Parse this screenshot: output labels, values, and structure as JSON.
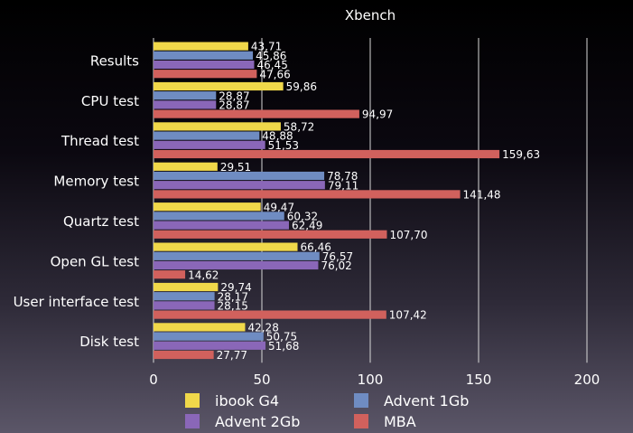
{
  "chart_data": {
    "type": "bar",
    "orientation": "horizontal",
    "title": "Xbench",
    "xlabel": "",
    "ylabel": "",
    "xlim": [
      0,
      200
    ],
    "xticks": [
      0,
      50,
      100,
      150,
      200
    ],
    "grid": true,
    "legend_position": "bottom",
    "categories": [
      "Results",
      "CPU test",
      "Thread test",
      "Memory test",
      "Quartz test",
      "Open GL test",
      "User interface test",
      "Disk test"
    ],
    "series": [
      {
        "name": "ibook G4",
        "color": "#f0d84a",
        "values": [
          43.71,
          59.86,
          58.72,
          29.51,
          49.47,
          66.46,
          29.74,
          42.28
        ],
        "labels": [
          "43,71",
          "59,86",
          "58,72",
          "29,51",
          "49,47",
          "66,46",
          "29,74",
          "42,28"
        ]
      },
      {
        "name": "Advent 1Gb",
        "color": "#6f8cc2",
        "values": [
          45.86,
          28.87,
          48.88,
          78.78,
          60.32,
          76.57,
          28.17,
          50.75
        ],
        "labels": [
          "45,86",
          "28,87",
          "48,88",
          "78,78",
          "60,32",
          "76,57",
          "28,17",
          "50,75"
        ]
      },
      {
        "name": "Advent 2Gb",
        "color": "#8a67b8",
        "values": [
          46.45,
          28.87,
          51.53,
          79.11,
          62.49,
          76.02,
          28.15,
          51.68
        ],
        "labels": [
          "46,45",
          "28,87",
          "51,53",
          "79,11",
          "62,49",
          "76,02",
          "28,15",
          "51,68"
        ]
      },
      {
        "name": "MBA",
        "color": "#d1615d",
        "values": [
          47.66,
          94.97,
          159.63,
          141.48,
          107.7,
          14.62,
          107.42,
          27.77
        ],
        "labels": [
          "47,66",
          "94,97",
          "159,63",
          "141,48",
          "107,70",
          "14,62",
          "107,42",
          "27,77"
        ]
      }
    ]
  }
}
